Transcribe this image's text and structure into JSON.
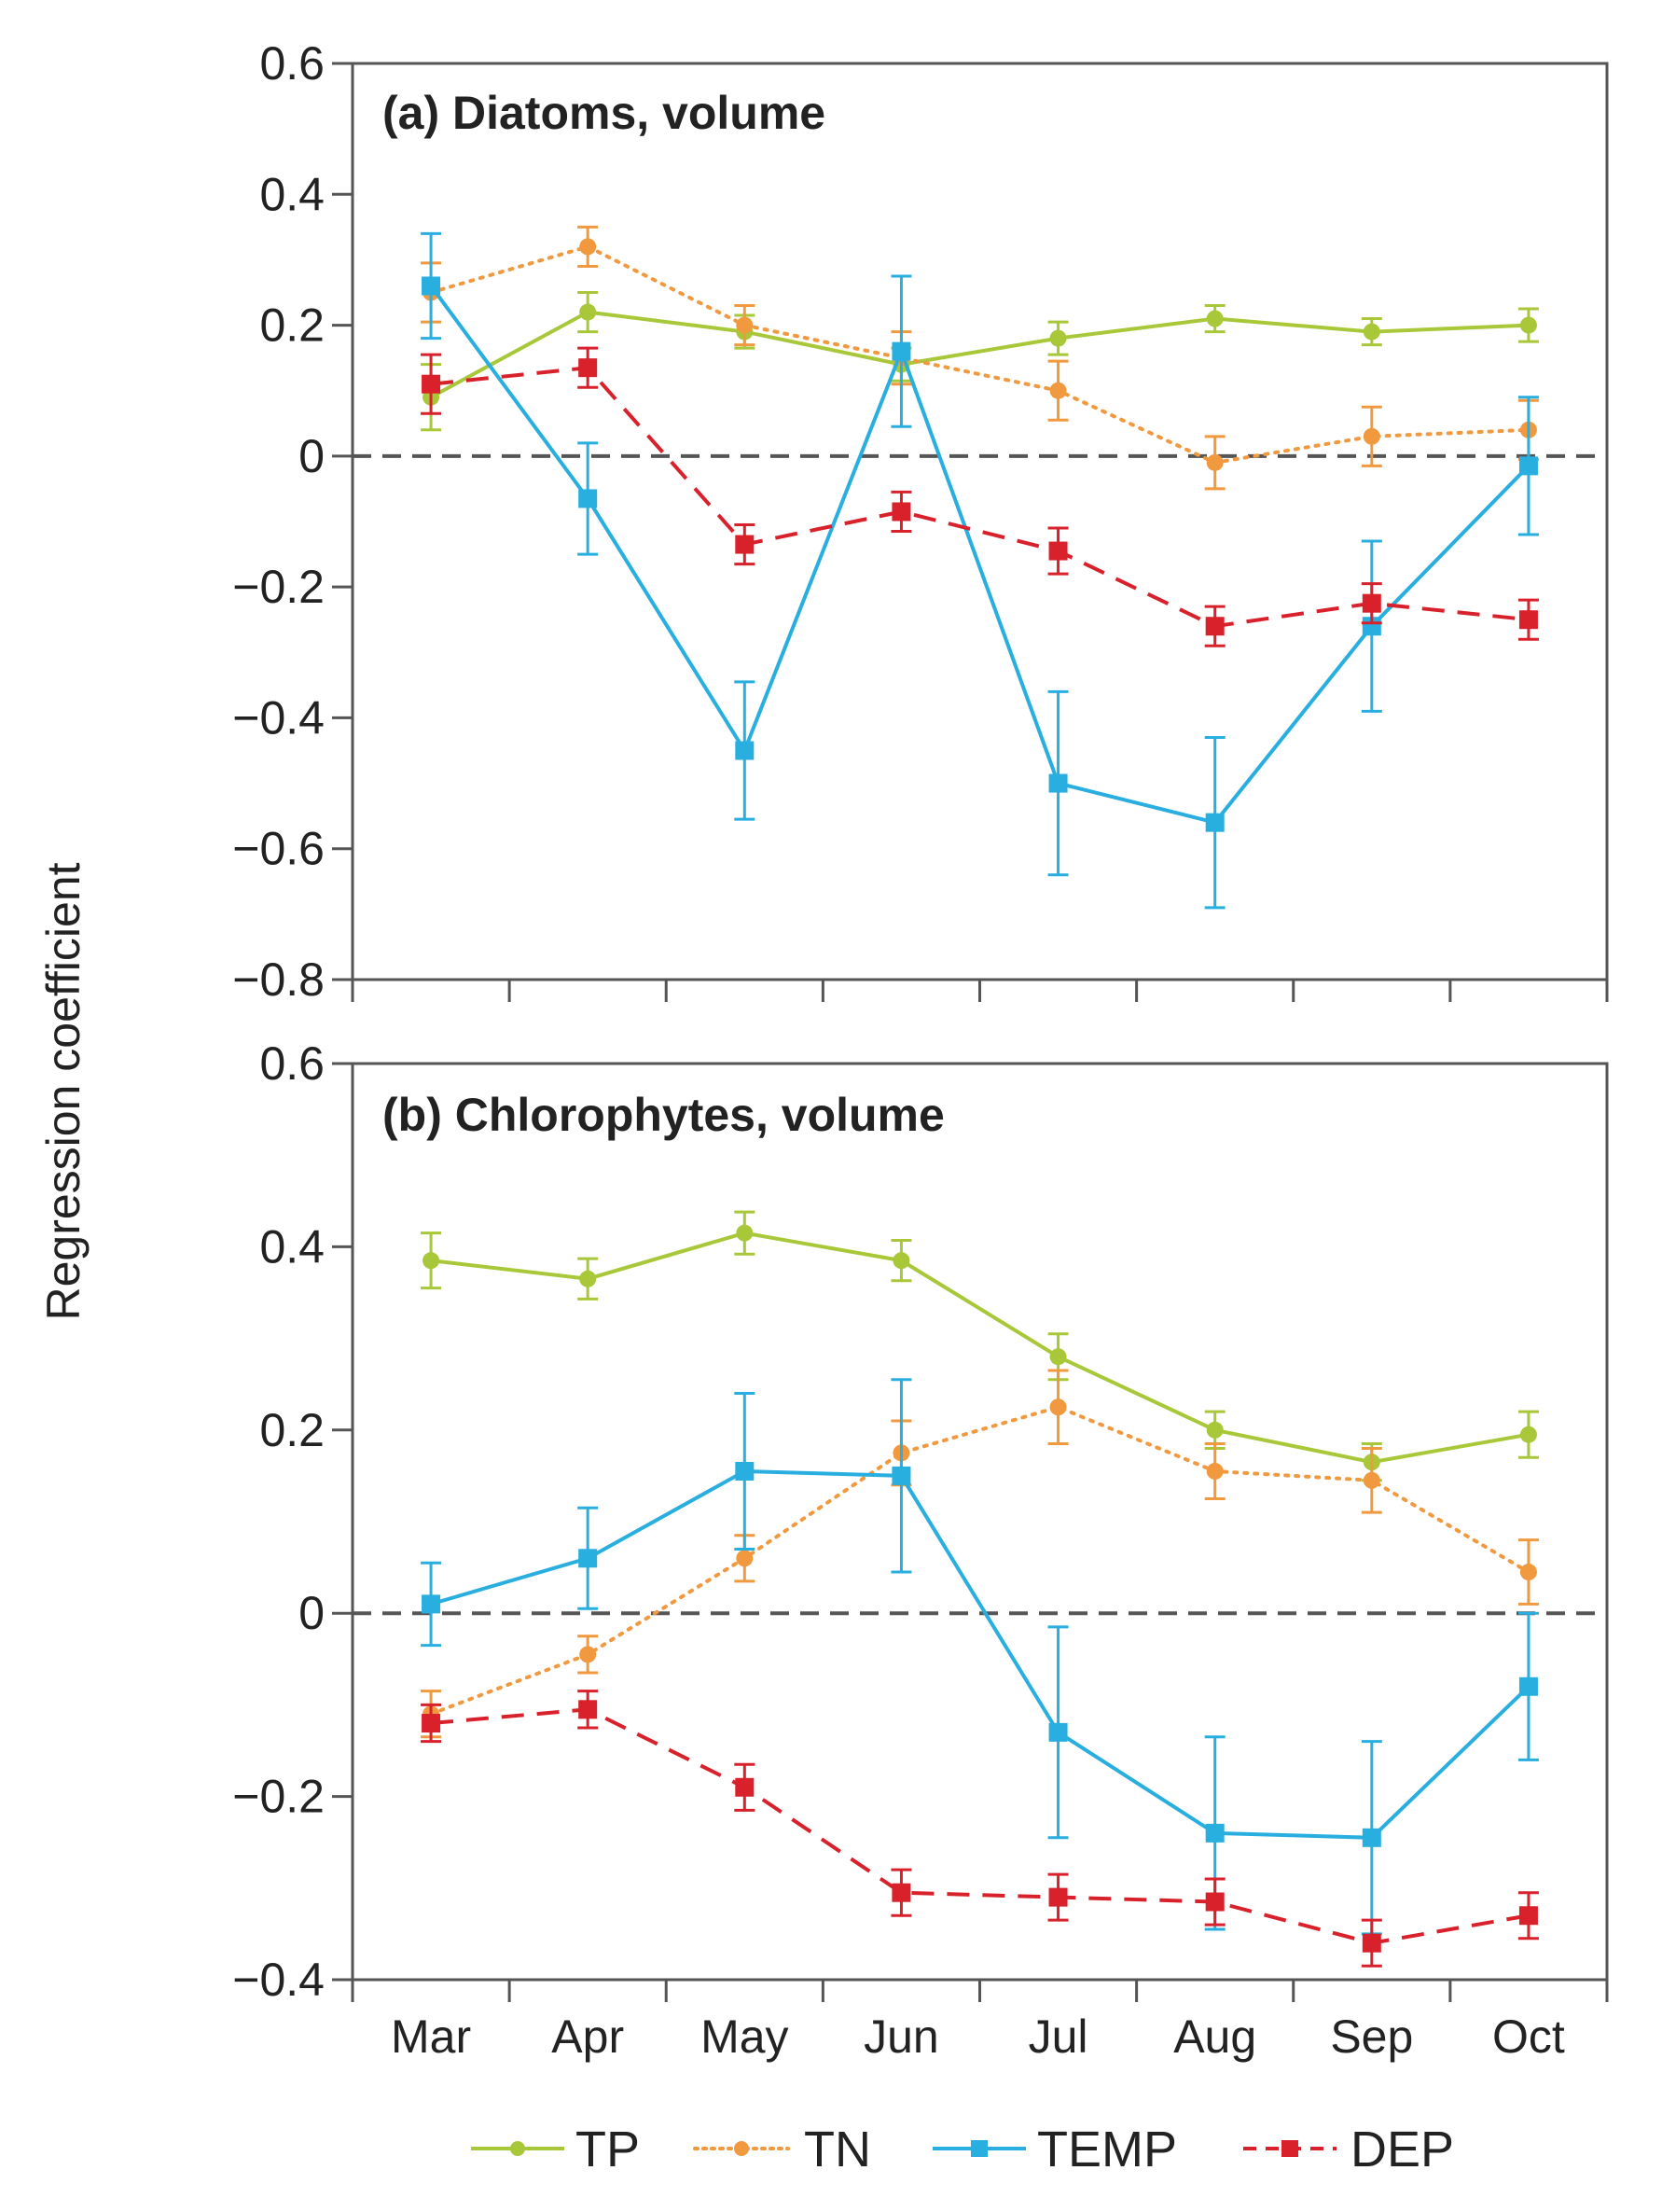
{
  "chart_data": {
    "type": "line",
    "ylabel": "Regression coefficient",
    "categories": [
      "Mar",
      "Apr",
      "May",
      "Jun",
      "Jul",
      "Aug",
      "Sep",
      "Oct"
    ],
    "legend": {
      "placement": "bottom-center",
      "entries": [
        {
          "name": "TP",
          "color": "#a8c83a",
          "marker": "circle",
          "dash": "solid"
        },
        {
          "name": "TN",
          "color": "#f0993f",
          "marker": "circle",
          "dash": "dotted"
        },
        {
          "name": "TEMP",
          "color": "#29aee0",
          "marker": "square",
          "dash": "solid"
        },
        {
          "name": "DEP",
          "color": "#d8212b",
          "marker": "square",
          "dash": "dashed"
        }
      ]
    },
    "panels": [
      {
        "title": "(a) Diatoms, volume",
        "ylim": [
          -0.8,
          0.6
        ],
        "yticks": [
          0.6,
          0.4,
          0.2,
          0,
          -0.2,
          -0.4,
          -0.6,
          -0.8
        ],
        "ytick_labels": [
          "0.6",
          "0.4",
          "0.2",
          "0",
          "−0.2",
          "−0.4",
          "−0.6",
          "−0.8"
        ],
        "zero_line": true,
        "series": [
          {
            "name": "TP",
            "values": [
              0.09,
              0.22,
              0.19,
              0.14,
              0.18,
              0.21,
              0.19,
              0.2
            ],
            "errors": [
              0.05,
              0.03,
              0.025,
              0.025,
              0.025,
              0.02,
              0.02,
              0.025
            ]
          },
          {
            "name": "TN",
            "values": [
              0.25,
              0.32,
              0.2,
              0.15,
              0.1,
              -0.01,
              0.03,
              0.04
            ],
            "errors": [
              0.045,
              0.03,
              0.03,
              0.04,
              0.045,
              0.04,
              0.045,
              0.045
            ]
          },
          {
            "name": "TEMP",
            "values": [
              0.26,
              -0.065,
              -0.45,
              0.16,
              -0.5,
              -0.56,
              -0.26,
              -0.015
            ],
            "errors": [
              0.08,
              0.085,
              0.105,
              0.115,
              0.14,
              0.13,
              0.13,
              0.105
            ]
          },
          {
            "name": "DEP",
            "values": [
              0.11,
              0.135,
              -0.135,
              -0.085,
              -0.145,
              -0.26,
              -0.225,
              -0.25
            ],
            "errors": [
              0.045,
              0.03,
              0.03,
              0.03,
              0.035,
              0.03,
              0.03,
              0.03
            ]
          }
        ]
      },
      {
        "title": "(b) Chlorophytes, volume",
        "ylim": [
          -0.4,
          0.6
        ],
        "yticks": [
          0.6,
          0.4,
          0.2,
          0,
          -0.2,
          -0.4
        ],
        "ytick_labels": [
          "0.6",
          "0.4",
          "0.2",
          "0",
          "−0.2",
          "−0.4"
        ],
        "zero_line": true,
        "series": [
          {
            "name": "TP",
            "values": [
              0.385,
              0.365,
              0.415,
              0.385,
              0.28,
              0.2,
              0.165,
              0.195
            ],
            "errors": [
              0.03,
              0.022,
              0.023,
              0.022,
              0.025,
              0.02,
              0.02,
              0.025
            ]
          },
          {
            "name": "TN",
            "values": [
              -0.11,
              -0.045,
              0.06,
              0.175,
              0.225,
              0.155,
              0.145,
              0.045
            ],
            "errors": [
              0.025,
              0.02,
              0.025,
              0.035,
              0.04,
              0.03,
              0.035,
              0.035
            ]
          },
          {
            "name": "TEMP",
            "values": [
              0.01,
              0.06,
              0.155,
              0.15,
              -0.13,
              -0.24,
              -0.245,
              -0.08
            ],
            "errors": [
              0.045,
              0.055,
              0.085,
              0.105,
              0.115,
              0.105,
              0.105,
              0.08
            ]
          },
          {
            "name": "DEP",
            "values": [
              -0.12,
              -0.105,
              -0.19,
              -0.305,
              -0.31,
              -0.315,
              -0.36,
              -0.33
            ],
            "errors": [
              0.02,
              0.02,
              0.025,
              0.025,
              0.025,
              0.025,
              0.025,
              0.025
            ]
          }
        ]
      }
    ]
  }
}
